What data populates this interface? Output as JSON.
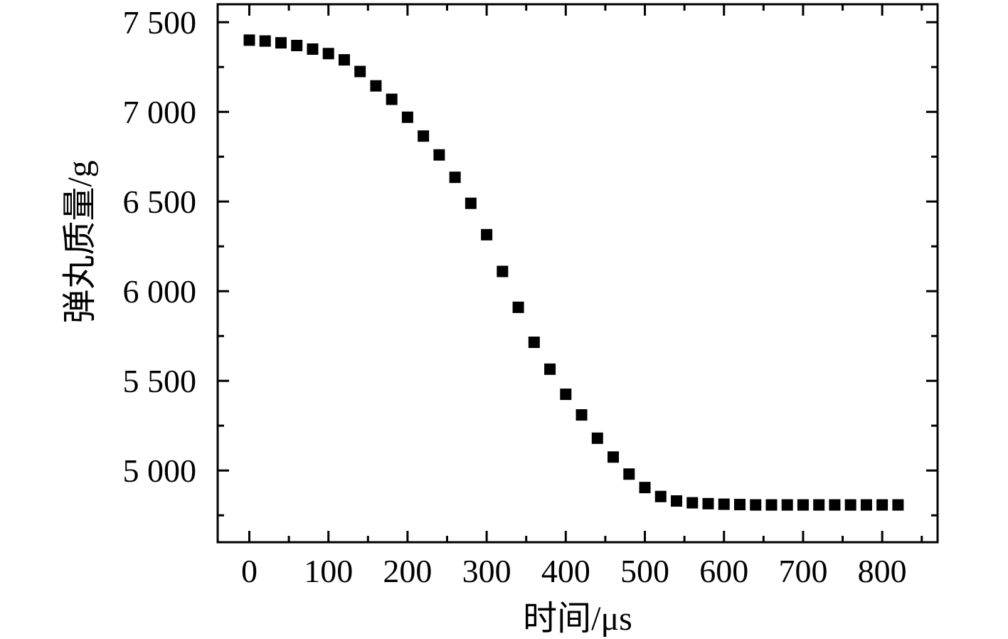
{
  "chart_data": {
    "type": "scatter",
    "title": "",
    "xlabel": "时间/μs",
    "ylabel": "弹丸质量/g",
    "xlim": [
      -40,
      870
    ],
    "ylim": [
      4600,
      7600
    ],
    "x_ticks": [
      0,
      100,
      200,
      300,
      400,
      500,
      600,
      700,
      800
    ],
    "x_tick_labels": [
      "0",
      "100",
      "200",
      "300",
      "400",
      "500",
      "600",
      "700",
      "800"
    ],
    "y_ticks": [
      5000,
      5500,
      6000,
      6500,
      7000,
      7500
    ],
    "y_tick_labels": [
      "5 000",
      "5 500",
      "6 000",
      "6 500",
      "7 000",
      "7 500"
    ],
    "x_minor_step": 50,
    "y_minor_step": 250,
    "grid": false,
    "legend": "none",
    "marker": "square",
    "colors": {
      "marker": "#000000",
      "axis": "#000000"
    },
    "series": [
      {
        "x": [
          0,
          20,
          40,
          60,
          80,
          100,
          120,
          140,
          160,
          180,
          200,
          220,
          240,
          260,
          280,
          300,
          320,
          340,
          360,
          380,
          400,
          420,
          440,
          460,
          480,
          500,
          520,
          540,
          560,
          580,
          600,
          620,
          640,
          660,
          680,
          700,
          720,
          740,
          760,
          780,
          800,
          820
        ],
        "y": [
          7400,
          7395,
          7385,
          7370,
          7350,
          7325,
          7290,
          7225,
          7145,
          7070,
          6970,
          6865,
          6760,
          6635,
          6490,
          6315,
          6110,
          5910,
          5715,
          5565,
          5425,
          5310,
          5180,
          5075,
          4980,
          4905,
          4855,
          4830,
          4820,
          4815,
          4812,
          4810,
          4808,
          4808,
          4808,
          4808,
          4808,
          4808,
          4808,
          4808,
          4808,
          4808
        ]
      }
    ]
  }
}
